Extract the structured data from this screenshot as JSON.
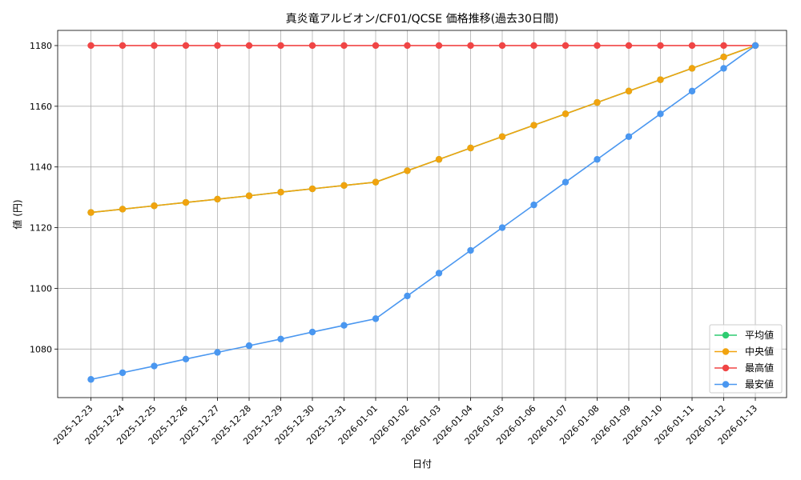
{
  "chart_data": {
    "type": "line",
    "title": "真炎竜アルビオン/CF01/QCSE 価格推移(過去30日間)",
    "xlabel": "日付",
    "ylabel": "値 (円)",
    "ylim": [
      1064,
      1185
    ],
    "yticks": [
      1080,
      1100,
      1120,
      1140,
      1160,
      1180
    ],
    "grid": true,
    "legend_position": "bottom-right",
    "categories": [
      "2025-12-23",
      "2025-12-24",
      "2025-12-25",
      "2025-12-26",
      "2025-12-27",
      "2025-12-28",
      "2025-12-29",
      "2025-12-30",
      "2025-12-31",
      "2026-01-01",
      "2026-01-02",
      "2026-01-03",
      "2026-01-04",
      "2026-01-05",
      "2026-01-06",
      "2026-01-07",
      "2026-01-08",
      "2026-01-09",
      "2026-01-10",
      "2026-01-11",
      "2026-01-12",
      "2026-01-13"
    ],
    "series": [
      {
        "name": "平均値",
        "color": "#2ecc71",
        "values": [
          1125,
          1126.1,
          1127.2,
          1128.3,
          1129.4,
          1130.5,
          1131.7,
          1132.8,
          1133.9,
          1135,
          1138.75,
          1142.5,
          1146.25,
          1150,
          1153.75,
          1157.5,
          1161.25,
          1165,
          1168.75,
          1172.5,
          1176.25,
          1180
        ]
      },
      {
        "name": "中央値",
        "color": "#f1a30f",
        "values": [
          1125,
          1126.1,
          1127.2,
          1128.3,
          1129.4,
          1130.5,
          1131.7,
          1132.8,
          1133.9,
          1135,
          1138.75,
          1142.5,
          1146.25,
          1150,
          1153.75,
          1157.5,
          1161.25,
          1165,
          1168.75,
          1172.5,
          1176.25,
          1180
        ]
      },
      {
        "name": "最高値",
        "color": "#f04545",
        "values": [
          1180,
          1180,
          1180,
          1180,
          1180,
          1180,
          1180,
          1180,
          1180,
          1180,
          1180,
          1180,
          1180,
          1180,
          1180,
          1180,
          1180,
          1180,
          1180,
          1180,
          1180,
          1180
        ]
      },
      {
        "name": "最安値",
        "color": "#4a97f0",
        "values": [
          1070,
          1072.2,
          1074.4,
          1076.7,
          1078.9,
          1081.1,
          1083.3,
          1085.6,
          1087.8,
          1090,
          1097.5,
          1105,
          1112.5,
          1120,
          1127.5,
          1135,
          1142.5,
          1150,
          1157.5,
          1165,
          1172.5,
          1180
        ]
      }
    ]
  }
}
